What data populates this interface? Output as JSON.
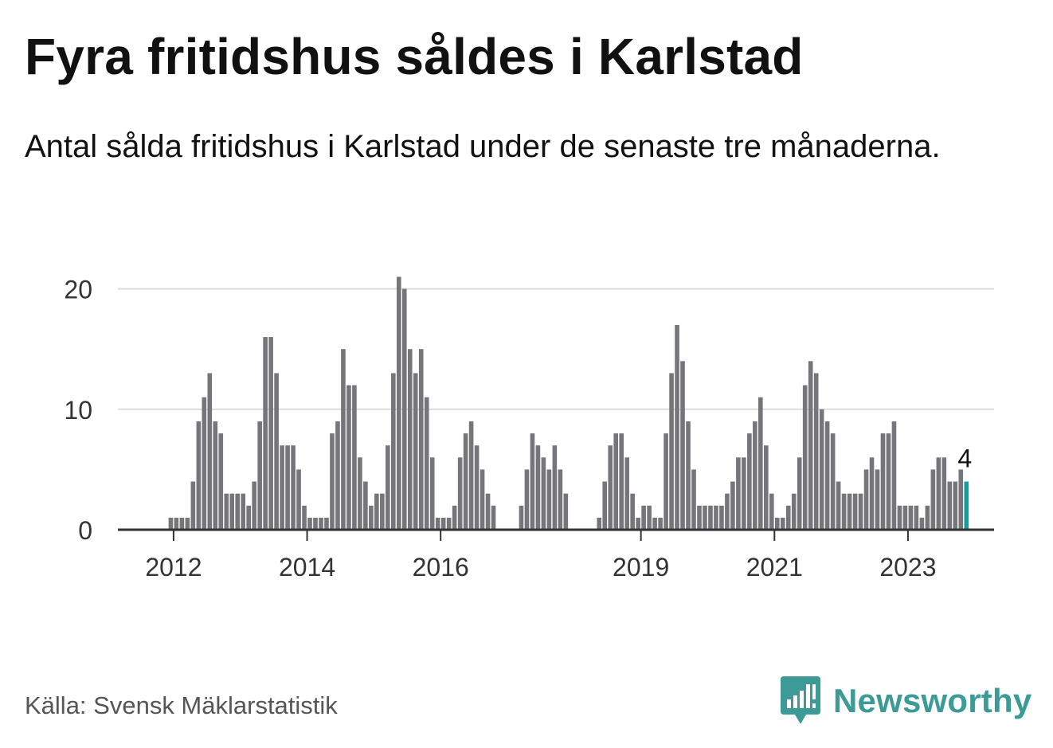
{
  "header": {
    "title": "Fyra fritidshus såldes i Karlstad",
    "subtitle": "Antal sålda fritidshus i Karlstad under de senaste tre månaderna."
  },
  "footer": {
    "source": "Källa: Svensk Mäklarstatistik",
    "brand": "Newsworthy"
  },
  "colors": {
    "bar": "#76767a",
    "highlight": "#159e9a",
    "grid": "#dcdcdc",
    "axis": "#333333",
    "brand": "#3c9b96"
  },
  "chart_data": {
    "type": "bar",
    "title": "Fyra fritidshus såldes i Karlstad",
    "subtitle": "Antal sålda fritidshus i Karlstad under de senaste tre månaderna.",
    "xlabel": "",
    "ylabel": "",
    "ylim": [
      0,
      20
    ],
    "yticks": [
      0,
      10,
      20
    ],
    "xticks": [
      {
        "label": "2012",
        "month": "2012-01"
      },
      {
        "label": "2014",
        "month": "2014-01"
      },
      {
        "label": "2016",
        "month": "2016-01"
      },
      {
        "label": "2019",
        "month": "2019-01"
      },
      {
        "label": "2021",
        "month": "2021-01"
      },
      {
        "label": "2023",
        "month": "2023-01"
      }
    ],
    "grid": true,
    "legend": "none",
    "start_month": "2011-07",
    "highlight_label": "4",
    "values": [
      0,
      0,
      0,
      0,
      0,
      0,
      1,
      1,
      1,
      1,
      4,
      9,
      11,
      13,
      9,
      8,
      3,
      3,
      3,
      3,
      2,
      4,
      9,
      16,
      16,
      13,
      7,
      7,
      7,
      5,
      2,
      1,
      1,
      1,
      1,
      8,
      9,
      15,
      12,
      12,
      6,
      4,
      2,
      3,
      3,
      7,
      13,
      21,
      20,
      15,
      13,
      15,
      11,
      6,
      1,
      1,
      1,
      2,
      6,
      8,
      9,
      7,
      5,
      3,
      2,
      0,
      0,
      0,
      0,
      2,
      5,
      8,
      7,
      6,
      5,
      7,
      5,
      3,
      0,
      0,
      0,
      0,
      0,
      1,
      4,
      7,
      8,
      8,
      6,
      3,
      1,
      2,
      2,
      1,
      1,
      8,
      13,
      17,
      14,
      9,
      5,
      2,
      2,
      2,
      2,
      2,
      3,
      4,
      6,
      6,
      8,
      9,
      11,
      7,
      3,
      1,
      1,
      2,
      3,
      6,
      12,
      14,
      13,
      10,
      9,
      8,
      4,
      3,
      3,
      3,
      3,
      5,
      6,
      5,
      8,
      8,
      9,
      2,
      2,
      2,
      2,
      1,
      2,
      5,
      6,
      6,
      4,
      4,
      5,
      4
    ]
  }
}
